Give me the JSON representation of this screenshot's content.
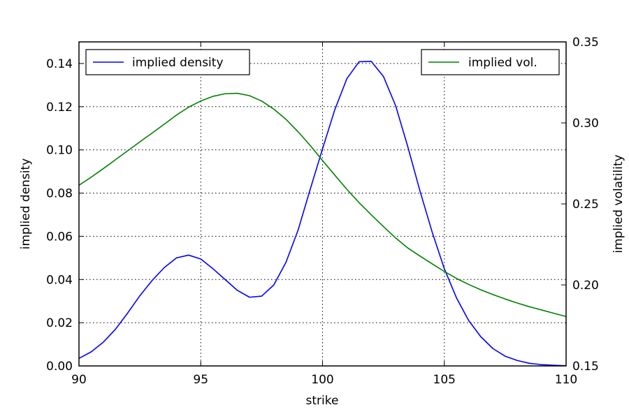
{
  "chart_data": {
    "type": "line",
    "xlabel": "strike",
    "ylabel_left": "implied density",
    "ylabel_right": "implied volatility",
    "xlim": [
      90,
      110
    ],
    "ylim_left": [
      0,
      0.15
    ],
    "ylim_right": [
      0.15,
      0.35
    ],
    "x_ticks": [
      "90",
      "95",
      "100",
      "105",
      "110"
    ],
    "y_left_ticks": [
      "0.00",
      "0.02",
      "0.04",
      "0.06",
      "0.08",
      "0.10",
      "0.12",
      "0.14"
    ],
    "y_right_ticks": [
      "0.15",
      "0.20",
      "0.25",
      "0.30",
      "0.35"
    ],
    "grid": true,
    "series": [
      {
        "name": "implied density",
        "axis": "left",
        "color": "#0000ff",
        "legend_position": "top-left",
        "x": [
          90,
          90.5,
          91,
          91.5,
          92,
          92.5,
          93,
          93.5,
          94,
          94.5,
          95,
          95.5,
          96,
          96.5,
          97,
          97.5,
          98,
          98.5,
          99,
          99.5,
          100,
          100.5,
          101,
          101.5,
          102,
          102.5,
          103,
          103.5,
          104,
          104.5,
          105,
          105.5,
          106,
          106.5,
          107,
          107.5,
          108,
          108.5,
          109,
          109.5,
          110
        ],
        "y": [
          0.0035,
          0.0065,
          0.011,
          0.017,
          0.0245,
          0.0325,
          0.0395,
          0.0455,
          0.05,
          0.0513,
          0.0495,
          0.045,
          0.04,
          0.035,
          0.0318,
          0.0323,
          0.0375,
          0.048,
          0.063,
          0.082,
          0.1005,
          0.1185,
          0.133,
          0.1408,
          0.141,
          0.134,
          0.1205,
          0.1015,
          0.081,
          0.062,
          0.045,
          0.0315,
          0.021,
          0.0135,
          0.008,
          0.0045,
          0.0025,
          0.0012,
          0.0006,
          0.0003,
          0.0001
        ]
      },
      {
        "name": "implied vol.",
        "axis": "right",
        "color": "#008000",
        "legend_position": "top-right",
        "x": [
          90,
          90.5,
          91,
          91.5,
          92,
          92.5,
          93,
          93.5,
          94,
          94.5,
          95,
          95.5,
          96,
          96.5,
          97,
          97.5,
          98,
          98.5,
          99,
          99.5,
          100,
          100.5,
          101,
          101.5,
          102,
          102.5,
          103,
          103.5,
          104,
          104.5,
          105,
          105.5,
          106,
          106.5,
          107,
          107.5,
          108,
          108.5,
          109,
          109.5,
          110
        ],
        "y": [
          0.2615,
          0.2665,
          0.2718,
          0.2773,
          0.2828,
          0.2883,
          0.2937,
          0.2992,
          0.3048,
          0.3097,
          0.3135,
          0.3164,
          0.318,
          0.3183,
          0.3168,
          0.3135,
          0.3085,
          0.3022,
          0.2945,
          0.286,
          0.2768,
          0.2678,
          0.259,
          0.2508,
          0.2433,
          0.236,
          0.229,
          0.2228,
          0.2178,
          0.213,
          0.2083,
          0.204,
          0.2003,
          0.197,
          0.194,
          0.1913,
          0.1888,
          0.1865,
          0.1845,
          0.1825,
          0.1805
        ]
      }
    ]
  }
}
